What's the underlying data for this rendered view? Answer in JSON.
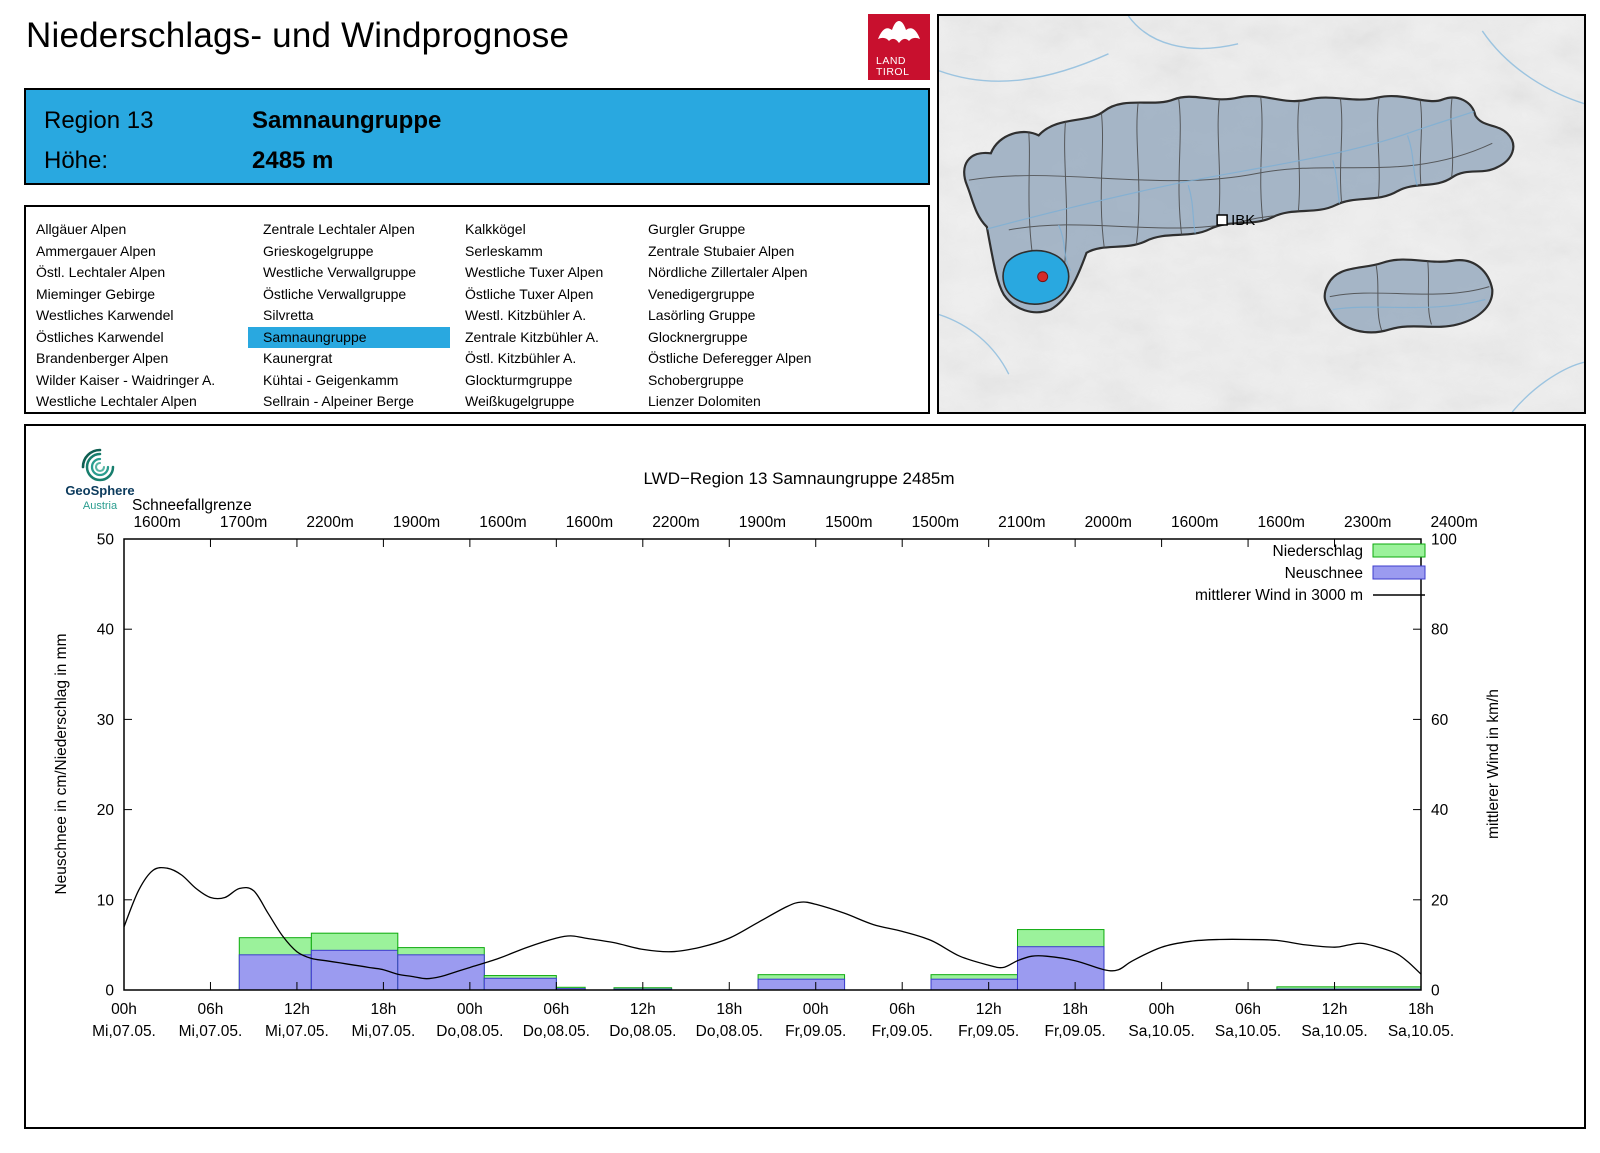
{
  "theme": {
    "accent": "#29a8e0"
  },
  "header": {
    "title": "Niederschlags- und Windprognose",
    "logo": {
      "line1": "LAND",
      "line2": "TIROL",
      "color": "#c8102e"
    }
  },
  "region_info": {
    "region_label": "Region 13",
    "region_name": "Samnaungruppe",
    "altitude_label": "Höhe:",
    "altitude_value": "2485 m"
  },
  "map": {
    "city_label": "IBK",
    "selected_region": "Samnaungruppe"
  },
  "region_list": {
    "selected": "Samnaungruppe",
    "columns": [
      [
        "Allgäuer Alpen",
        "Ammergauer Alpen",
        "Östl. Lechtaler Alpen",
        "Mieminger Gebirge",
        "Westliches Karwendel",
        "Östliches Karwendel",
        "Brandenberger Alpen",
        "Wilder Kaiser - Waidringer A.",
        "Westliche Lechtaler Alpen"
      ],
      [
        "Zentrale Lechtaler Alpen",
        "Grieskogelgruppe",
        "Westliche Verwallgruppe",
        "Östliche Verwallgruppe",
        "Silvretta",
        "Samnaungruppe",
        "Kaunergrat",
        "Kühtai - Geigenkamm",
        "Sellrain - Alpeiner Berge"
      ],
      [
        "Kalkkögel",
        "Serleskamm",
        "Westliche Tuxer Alpen",
        "Östliche Tuxer Alpen",
        "Westl. Kitzbühler A.",
        "Zentrale Kitzbühler A.",
        "Östl. Kitzbühler A.",
        "Glockturmgruppe",
        "Weißkugelgruppe"
      ],
      [
        "Gurgler Gruppe",
        "Zentrale Stubaier Alpen",
        "Nördliche Zillertaler Alpen",
        "Venedigergruppe",
        "Lasörling Gruppe",
        "Glocknergruppe",
        "Östliche Deferegger Alpen",
        "Schobergruppe",
        "Lienzer Dolomiten"
      ]
    ]
  },
  "chart_data": {
    "type": "bar",
    "title": "LWD−Region 13 Samnaungruppe 2485m",
    "branding": {
      "name": "GeoSphere",
      "sub": "Austria"
    },
    "snowline_label": "Schneefallgrenze",
    "snowline_values": [
      "1600m",
      "1700m",
      "2200m",
      "1900m",
      "1600m",
      "1600m",
      "2200m",
      "1900m",
      "1500m",
      "1500m",
      "2100m",
      "2000m",
      "1600m",
      "1600m",
      "2300m",
      "2400m"
    ],
    "ylabel_left": "Neuschnee in cm/Niederschlag in mm",
    "ylabel_right": "mittlerer Wind in km/h",
    "ylim_left": [
      0,
      50
    ],
    "yticks_left": [
      0,
      10,
      20,
      30,
      40,
      50
    ],
    "ylim_right": [
      0,
      100
    ],
    "yticks_right": [
      0,
      20,
      40,
      60,
      80,
      100
    ],
    "hours_range": [
      0,
      90
    ],
    "xticks": [
      {
        "hour": 0,
        "time": "00h",
        "day": "Mi,07.05."
      },
      {
        "hour": 6,
        "time": "06h",
        "day": "Mi,07.05."
      },
      {
        "hour": 12,
        "time": "12h",
        "day": "Mi,07.05."
      },
      {
        "hour": 18,
        "time": "18h",
        "day": "Mi,07.05."
      },
      {
        "hour": 24,
        "time": "00h",
        "day": "Do,08.05."
      },
      {
        "hour": 30,
        "time": "06h",
        "day": "Do,08.05."
      },
      {
        "hour": 36,
        "time": "12h",
        "day": "Do,08.05."
      },
      {
        "hour": 42,
        "time": "18h",
        "day": "Do,08.05."
      },
      {
        "hour": 48,
        "time": "00h",
        "day": "Fr,09.05."
      },
      {
        "hour": 54,
        "time": "06h",
        "day": "Fr,09.05."
      },
      {
        "hour": 60,
        "time": "12h",
        "day": "Fr,09.05."
      },
      {
        "hour": 66,
        "time": "18h",
        "day": "Fr,09.05."
      },
      {
        "hour": 72,
        "time": "00h",
        "day": "Sa,10.05."
      },
      {
        "hour": 78,
        "time": "06h",
        "day": "Sa,10.05."
      },
      {
        "hour": 84,
        "time": "12h",
        "day": "Sa,10.05."
      },
      {
        "hour": 90,
        "time": "18h",
        "day": "Sa,10.05."
      }
    ],
    "colors": {
      "niederschlag_fill": "#9bf29b",
      "niederschlag_stroke": "#0caa0c",
      "neuschnee_fill": "#9b9bf0",
      "neuschnee_stroke": "#3c3ccc",
      "wind_stroke": "#000000"
    },
    "legend": [
      {
        "label": "Niederschlag",
        "swatch": "niederschlag"
      },
      {
        "label": "Neuschnee",
        "swatch": "neuschnee"
      },
      {
        "label": "mittlerer Wind in 3000 m",
        "swatch": "line"
      }
    ],
    "bars": [
      {
        "start_hour": 8,
        "end_hour": 13,
        "niederschlag_mm": 5.8,
        "neuschnee_cm": 3.9
      },
      {
        "start_hour": 13,
        "end_hour": 19,
        "niederschlag_mm": 6.3,
        "neuschnee_cm": 4.4
      },
      {
        "start_hour": 19,
        "end_hour": 25,
        "niederschlag_mm": 4.7,
        "neuschnee_cm": 3.9
      },
      {
        "start_hour": 25,
        "end_hour": 30,
        "niederschlag_mm": 1.6,
        "neuschnee_cm": 1.3
      },
      {
        "start_hour": 30,
        "end_hour": 32,
        "niederschlag_mm": 0.3,
        "neuschnee_cm": 0.15
      },
      {
        "start_hour": 34,
        "end_hour": 38,
        "niederschlag_mm": 0.25,
        "neuschnee_cm": 0.1
      },
      {
        "start_hour": 44,
        "end_hour": 50,
        "niederschlag_mm": 1.7,
        "neuschnee_cm": 1.2
      },
      {
        "start_hour": 56,
        "end_hour": 62,
        "niederschlag_mm": 1.7,
        "neuschnee_cm": 1.2
      },
      {
        "start_hour": 62,
        "end_hour": 68,
        "niederschlag_mm": 6.7,
        "neuschnee_cm": 4.8
      },
      {
        "start_hour": 80,
        "end_hour": 90,
        "niederschlag_mm": 0.35,
        "neuschnee_cm": 0.1
      }
    ],
    "wind_kmh": [
      [
        0,
        14
      ],
      [
        1,
        22
      ],
      [
        2,
        26.5
      ],
      [
        3,
        27
      ],
      [
        4,
        25.5
      ],
      [
        5,
        22.5
      ],
      [
        6,
        20.5
      ],
      [
        7,
        20.5
      ],
      [
        8,
        22.5
      ],
      [
        9,
        22
      ],
      [
        10,
        17
      ],
      [
        11,
        12
      ],
      [
        12,
        8.5
      ],
      [
        13,
        7
      ],
      [
        14,
        6.5
      ],
      [
        15,
        6
      ],
      [
        16,
        5.5
      ],
      [
        17,
        5
      ],
      [
        18,
        4.5
      ],
      [
        19,
        3.5
      ],
      [
        20,
        3
      ],
      [
        21,
        2.5
      ],
      [
        22,
        3
      ],
      [
        23,
        4
      ],
      [
        24,
        5
      ],
      [
        26,
        7
      ],
      [
        28,
        9.5
      ],
      [
        30,
        11.5
      ],
      [
        31,
        12
      ],
      [
        32,
        11.5
      ],
      [
        34,
        10.5
      ],
      [
        36,
        9
      ],
      [
        38,
        8.5
      ],
      [
        40,
        9.5
      ],
      [
        42,
        11.5
      ],
      [
        44,
        15
      ],
      [
        46,
        18.5
      ],
      [
        47,
        19.5
      ],
      [
        48,
        19
      ],
      [
        50,
        17
      ],
      [
        52,
        14.5
      ],
      [
        54,
        13
      ],
      [
        56,
        11
      ],
      [
        58,
        7.5
      ],
      [
        60,
        5.5
      ],
      [
        61,
        5
      ],
      [
        62,
        6.5
      ],
      [
        63,
        7.5
      ],
      [
        64,
        7.5
      ],
      [
        66,
        6.5
      ],
      [
        68,
        4.5
      ],
      [
        69,
        4.5
      ],
      [
        70,
        6.5
      ],
      [
        72,
        9.5
      ],
      [
        74,
        10.8
      ],
      [
        76,
        11.2
      ],
      [
        78,
        11.2
      ],
      [
        80,
        11
      ],
      [
        82,
        10
      ],
      [
        84,
        9.5
      ],
      [
        85,
        10
      ],
      [
        86,
        10.3
      ],
      [
        88,
        8.5
      ],
      [
        89,
        6.5
      ],
      [
        90,
        3.5
      ]
    ]
  }
}
